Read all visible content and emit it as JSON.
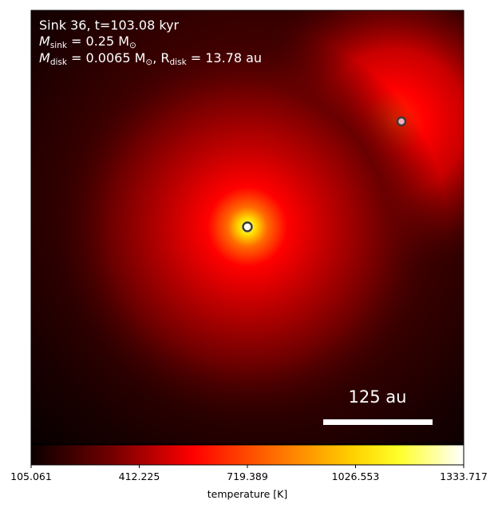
{
  "chart_data": {
    "type": "heatmap",
    "annotation": {
      "line1": "Sink 36, t=103.08 kyr",
      "msink_symbol": "M",
      "msink_sub": "sink",
      "msink_value": " = 0.25 M",
      "msink_sun": "⊙",
      "mdisk_symbol": "M",
      "mdisk_sub": "disk",
      "mdisk_value": " = 0.0065 M",
      "mdisk_sun": "⊙",
      "rdisk_prefix": ", R",
      "rdisk_sub": "disk",
      "rdisk_value": " = 13.78 au"
    },
    "scale_bar": {
      "label": "125 au",
      "length_au": 125
    },
    "sinks": [
      {
        "name": "sink 36",
        "marker": "yellow-ring"
      },
      {
        "name": "companion sink",
        "marker": "pink-ring"
      }
    ],
    "colorbar": {
      "label": "temperature [K]",
      "colormap": "hot",
      "vmin": 105.061,
      "vmax": 1333.717,
      "ticks": [
        "105.061",
        "412.225",
        "719.389",
        "1026.553",
        "1333.717"
      ]
    },
    "grid": false
  }
}
